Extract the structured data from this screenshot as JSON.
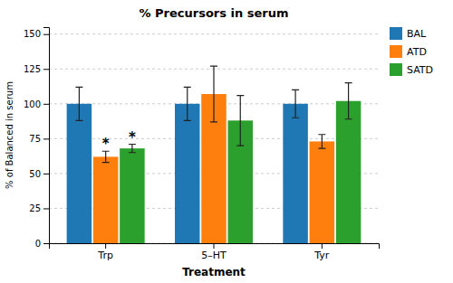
{
  "chart_data": {
    "type": "bar",
    "title": "% Precursors in serum",
    "xlabel": "Treatment",
    "ylabel": "% of Balanced in serum",
    "categories": [
      "Trp",
      "5–HT",
      "Tyr"
    ],
    "series": [
      {
        "name": "BAL",
        "values": [
          100,
          100,
          100
        ],
        "errors": [
          12,
          12,
          10
        ]
      },
      {
        "name": "ATD",
        "values": [
          62,
          107,
          73
        ],
        "errors": [
          4,
          20,
          5
        ]
      },
      {
        "name": "SATD",
        "values": [
          68,
          88,
          102
        ],
        "errors": [
          3,
          18,
          13
        ]
      }
    ],
    "annotations": [
      {
        "text": "*",
        "category": "Trp",
        "series": "ATD"
      },
      {
        "text": "*",
        "category": "Trp",
        "series": "SATD"
      }
    ],
    "ylim": [
      0,
      155
    ],
    "yticks": [
      0,
      25,
      50,
      75,
      100,
      125,
      150
    ],
    "grid": true,
    "legend": "right"
  }
}
